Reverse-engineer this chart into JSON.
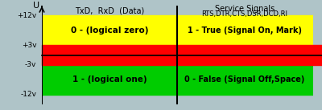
{
  "bg_color": "#afc4c8",
  "title_left": "TxD,  RxD  (Data)",
  "title_right_line1": "Service Signals",
  "title_right_line2": "RTS,DTR,CTS,DSR,DCD,RI",
  "ylabel": "U",
  "ytick_vals": [
    12,
    3,
    -3,
    -12
  ],
  "ytick_labels": [
    "+12v",
    "+3v",
    "-3v",
    "-12v"
  ],
  "yellow_color": "#ffff00",
  "green_color": "#00cc00",
  "red_color": "#ff0000",
  "black": "#000000",
  "gray_line": "#888888",
  "label_yellow_left": "0 - (logical zero)",
  "label_yellow_right": "1 - True (Signal On, Mark)",
  "label_green_left": "1 - (logical one)",
  "label_green_right": "0 - False (Signal Off,Space)"
}
